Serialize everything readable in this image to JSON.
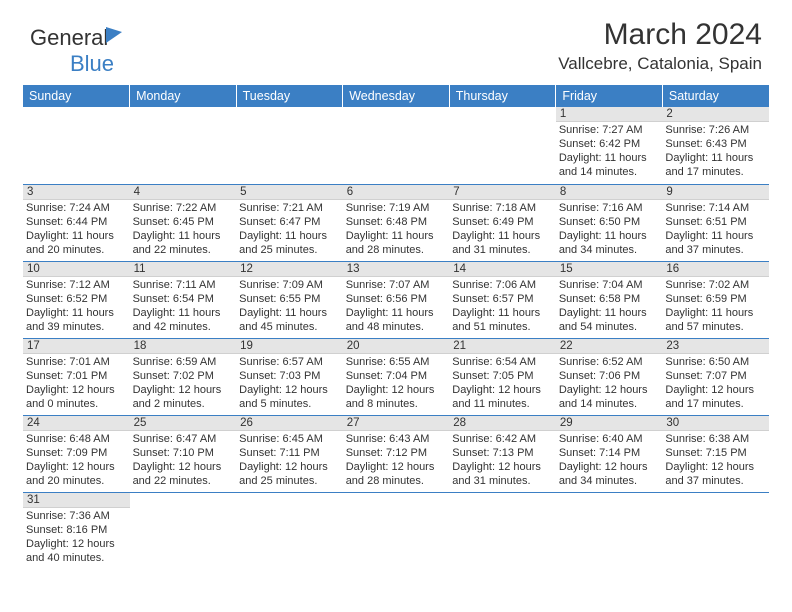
{
  "brand": {
    "part1": "General",
    "part2": "Blue"
  },
  "title": "March 2024",
  "location": "Vallcebre, Catalonia, Spain",
  "colors": {
    "accent": "#3b7fc4",
    "daybar": "#e5e5e5",
    "text": "#333333"
  },
  "weekdays": [
    "Sunday",
    "Monday",
    "Tuesday",
    "Wednesday",
    "Thursday",
    "Friday",
    "Saturday"
  ],
  "weeks": [
    [
      null,
      null,
      null,
      null,
      null,
      {
        "n": "1",
        "sr": "Sunrise: 7:27 AM",
        "ss": "Sunset: 6:42 PM",
        "d1": "Daylight: 11 hours",
        "d2": "and 14 minutes."
      },
      {
        "n": "2",
        "sr": "Sunrise: 7:26 AM",
        "ss": "Sunset: 6:43 PM",
        "d1": "Daylight: 11 hours",
        "d2": "and 17 minutes."
      }
    ],
    [
      {
        "n": "3",
        "sr": "Sunrise: 7:24 AM",
        "ss": "Sunset: 6:44 PM",
        "d1": "Daylight: 11 hours",
        "d2": "and 20 minutes."
      },
      {
        "n": "4",
        "sr": "Sunrise: 7:22 AM",
        "ss": "Sunset: 6:45 PM",
        "d1": "Daylight: 11 hours",
        "d2": "and 22 minutes."
      },
      {
        "n": "5",
        "sr": "Sunrise: 7:21 AM",
        "ss": "Sunset: 6:47 PM",
        "d1": "Daylight: 11 hours",
        "d2": "and 25 minutes."
      },
      {
        "n": "6",
        "sr": "Sunrise: 7:19 AM",
        "ss": "Sunset: 6:48 PM",
        "d1": "Daylight: 11 hours",
        "d2": "and 28 minutes."
      },
      {
        "n": "7",
        "sr": "Sunrise: 7:18 AM",
        "ss": "Sunset: 6:49 PM",
        "d1": "Daylight: 11 hours",
        "d2": "and 31 minutes."
      },
      {
        "n": "8",
        "sr": "Sunrise: 7:16 AM",
        "ss": "Sunset: 6:50 PM",
        "d1": "Daylight: 11 hours",
        "d2": "and 34 minutes."
      },
      {
        "n": "9",
        "sr": "Sunrise: 7:14 AM",
        "ss": "Sunset: 6:51 PM",
        "d1": "Daylight: 11 hours",
        "d2": "and 37 minutes."
      }
    ],
    [
      {
        "n": "10",
        "sr": "Sunrise: 7:12 AM",
        "ss": "Sunset: 6:52 PM",
        "d1": "Daylight: 11 hours",
        "d2": "and 39 minutes."
      },
      {
        "n": "11",
        "sr": "Sunrise: 7:11 AM",
        "ss": "Sunset: 6:54 PM",
        "d1": "Daylight: 11 hours",
        "d2": "and 42 minutes."
      },
      {
        "n": "12",
        "sr": "Sunrise: 7:09 AM",
        "ss": "Sunset: 6:55 PM",
        "d1": "Daylight: 11 hours",
        "d2": "and 45 minutes."
      },
      {
        "n": "13",
        "sr": "Sunrise: 7:07 AM",
        "ss": "Sunset: 6:56 PM",
        "d1": "Daylight: 11 hours",
        "d2": "and 48 minutes."
      },
      {
        "n": "14",
        "sr": "Sunrise: 7:06 AM",
        "ss": "Sunset: 6:57 PM",
        "d1": "Daylight: 11 hours",
        "d2": "and 51 minutes."
      },
      {
        "n": "15",
        "sr": "Sunrise: 7:04 AM",
        "ss": "Sunset: 6:58 PM",
        "d1": "Daylight: 11 hours",
        "d2": "and 54 minutes."
      },
      {
        "n": "16",
        "sr": "Sunrise: 7:02 AM",
        "ss": "Sunset: 6:59 PM",
        "d1": "Daylight: 11 hours",
        "d2": "and 57 minutes."
      }
    ],
    [
      {
        "n": "17",
        "sr": "Sunrise: 7:01 AM",
        "ss": "Sunset: 7:01 PM",
        "d1": "Daylight: 12 hours",
        "d2": "and 0 minutes."
      },
      {
        "n": "18",
        "sr": "Sunrise: 6:59 AM",
        "ss": "Sunset: 7:02 PM",
        "d1": "Daylight: 12 hours",
        "d2": "and 2 minutes."
      },
      {
        "n": "19",
        "sr": "Sunrise: 6:57 AM",
        "ss": "Sunset: 7:03 PM",
        "d1": "Daylight: 12 hours",
        "d2": "and 5 minutes."
      },
      {
        "n": "20",
        "sr": "Sunrise: 6:55 AM",
        "ss": "Sunset: 7:04 PM",
        "d1": "Daylight: 12 hours",
        "d2": "and 8 minutes."
      },
      {
        "n": "21",
        "sr": "Sunrise: 6:54 AM",
        "ss": "Sunset: 7:05 PM",
        "d1": "Daylight: 12 hours",
        "d2": "and 11 minutes."
      },
      {
        "n": "22",
        "sr": "Sunrise: 6:52 AM",
        "ss": "Sunset: 7:06 PM",
        "d1": "Daylight: 12 hours",
        "d2": "and 14 minutes."
      },
      {
        "n": "23",
        "sr": "Sunrise: 6:50 AM",
        "ss": "Sunset: 7:07 PM",
        "d1": "Daylight: 12 hours",
        "d2": "and 17 minutes."
      }
    ],
    [
      {
        "n": "24",
        "sr": "Sunrise: 6:48 AM",
        "ss": "Sunset: 7:09 PM",
        "d1": "Daylight: 12 hours",
        "d2": "and 20 minutes."
      },
      {
        "n": "25",
        "sr": "Sunrise: 6:47 AM",
        "ss": "Sunset: 7:10 PM",
        "d1": "Daylight: 12 hours",
        "d2": "and 22 minutes."
      },
      {
        "n": "26",
        "sr": "Sunrise: 6:45 AM",
        "ss": "Sunset: 7:11 PM",
        "d1": "Daylight: 12 hours",
        "d2": "and 25 minutes."
      },
      {
        "n": "27",
        "sr": "Sunrise: 6:43 AM",
        "ss": "Sunset: 7:12 PM",
        "d1": "Daylight: 12 hours",
        "d2": "and 28 minutes."
      },
      {
        "n": "28",
        "sr": "Sunrise: 6:42 AM",
        "ss": "Sunset: 7:13 PM",
        "d1": "Daylight: 12 hours",
        "d2": "and 31 minutes."
      },
      {
        "n": "29",
        "sr": "Sunrise: 6:40 AM",
        "ss": "Sunset: 7:14 PM",
        "d1": "Daylight: 12 hours",
        "d2": "and 34 minutes."
      },
      {
        "n": "30",
        "sr": "Sunrise: 6:38 AM",
        "ss": "Sunset: 7:15 PM",
        "d1": "Daylight: 12 hours",
        "d2": "and 37 minutes."
      }
    ],
    [
      {
        "n": "31",
        "sr": "Sunrise: 7:36 AM",
        "ss": "Sunset: 8:16 PM",
        "d1": "Daylight: 12 hours",
        "d2": "and 40 minutes."
      },
      null,
      null,
      null,
      null,
      null,
      null
    ]
  ]
}
